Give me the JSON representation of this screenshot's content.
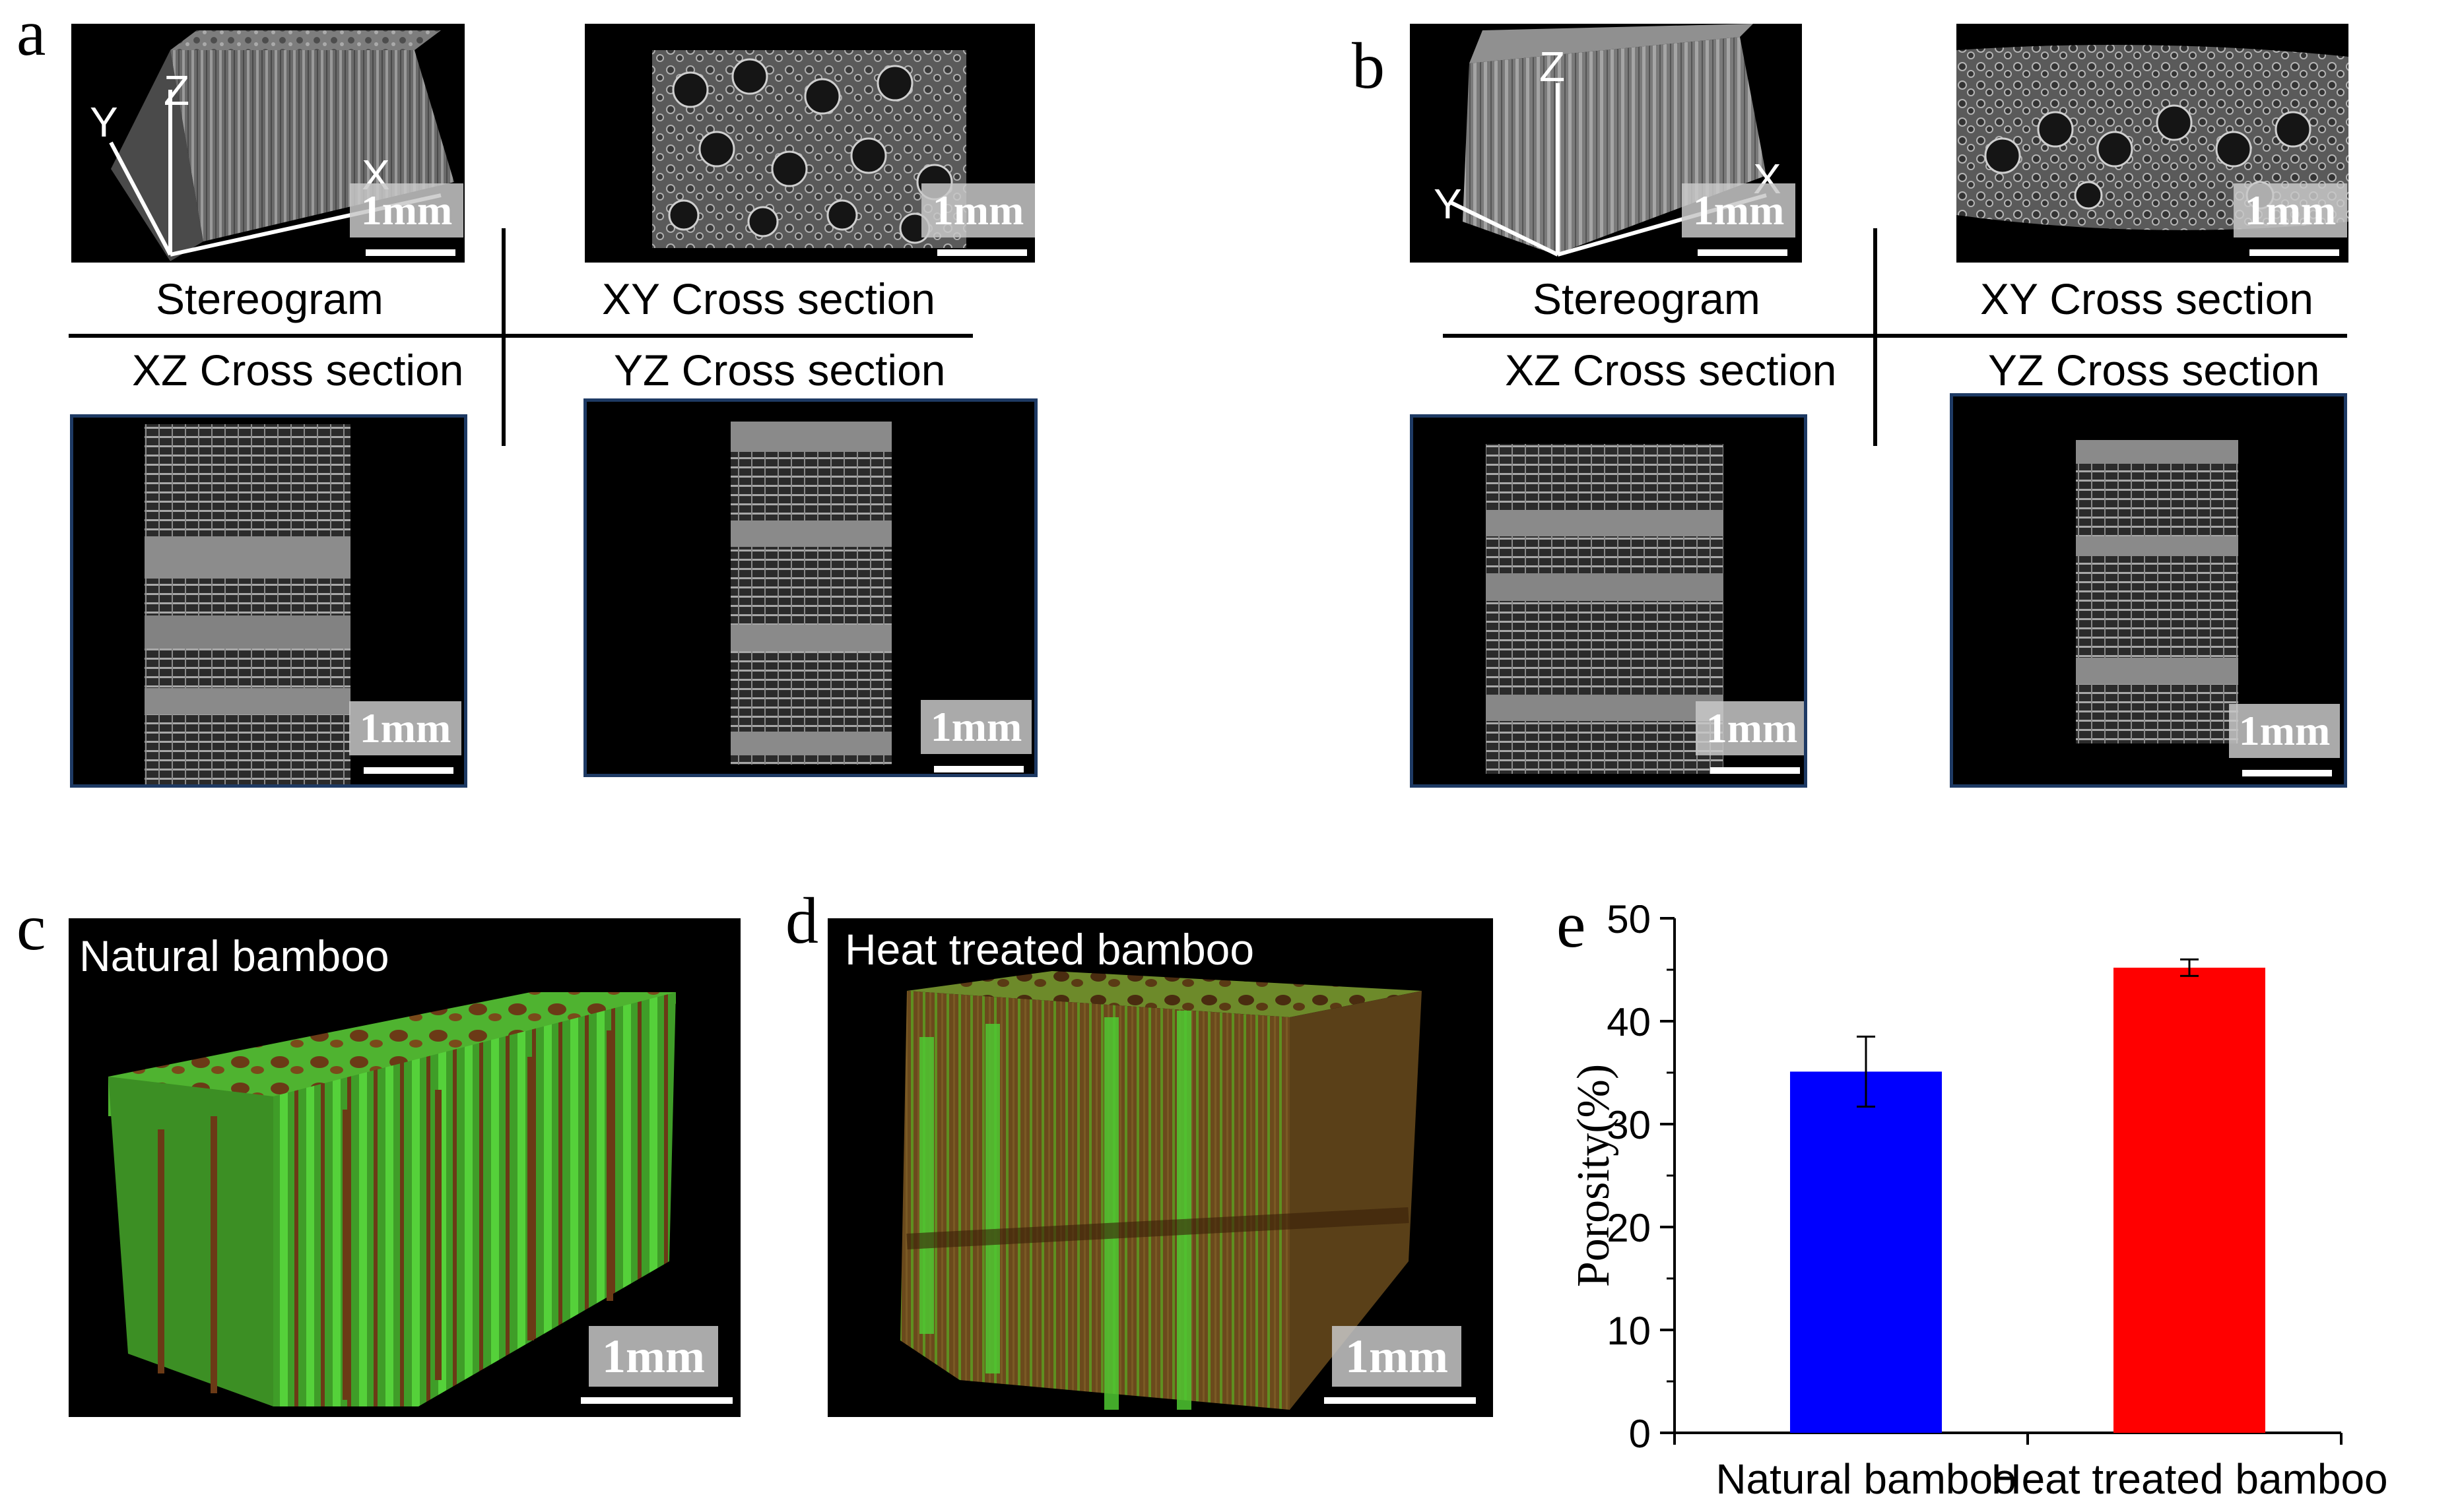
{
  "panels": {
    "a": {
      "letter": "a",
      "stereogram": {
        "axes": {
          "x": "X",
          "y": "Y",
          "z": "Z"
        },
        "scale": "1mm"
      },
      "xy": {
        "scale": "1mm"
      },
      "xz": {
        "scale": "1mm"
      },
      "yz": {
        "scale": "1mm"
      },
      "captions": {
        "stereogram": "Stereogram",
        "xy": "XY Cross section",
        "xz": "XZ Cross section",
        "yz": "YZ Cross section"
      }
    },
    "b": {
      "letter": "b",
      "stereogram": {
        "axes": {
          "x": "X",
          "y": "Y",
          "z": "Z"
        },
        "scale": "1mm"
      },
      "xy": {
        "scale": "1mm"
      },
      "xz": {
        "scale": "1mm"
      },
      "yz": {
        "scale": "1mm"
      },
      "captions": {
        "stereogram": "Stereogram",
        "xy": "XY Cross section",
        "xz": "XZ Cross section",
        "yz": "YZ Cross section"
      }
    },
    "c": {
      "letter": "c",
      "title": "Natural bamboo",
      "scale": "1mm"
    },
    "d": {
      "letter": "d",
      "title": "Heat treated bamboo",
      "scale": "1mm"
    },
    "e": {
      "letter": "e"
    }
  },
  "colors": {
    "frame": "#1e3a64",
    "bamboo_green": "#4fc832",
    "bamboo_brown": "#6b3a16",
    "bar_natural": "#0000ff",
    "bar_heat": "#ff0000"
  },
  "chart_data": {
    "type": "bar",
    "categories": [
      "Natural bamboo",
      "Heat treated bamboo"
    ],
    "values": [
      35.1,
      45.2
    ],
    "errors": [
      3.4,
      0.8
    ],
    "bar_colors": [
      "#0000ff",
      "#ff0000"
    ],
    "title": "",
    "xlabel": "",
    "ylabel": "Porosity(%)",
    "ylim": [
      0,
      50
    ],
    "yticks": [
      0,
      10,
      20,
      30,
      40,
      50
    ],
    "grid": false
  }
}
